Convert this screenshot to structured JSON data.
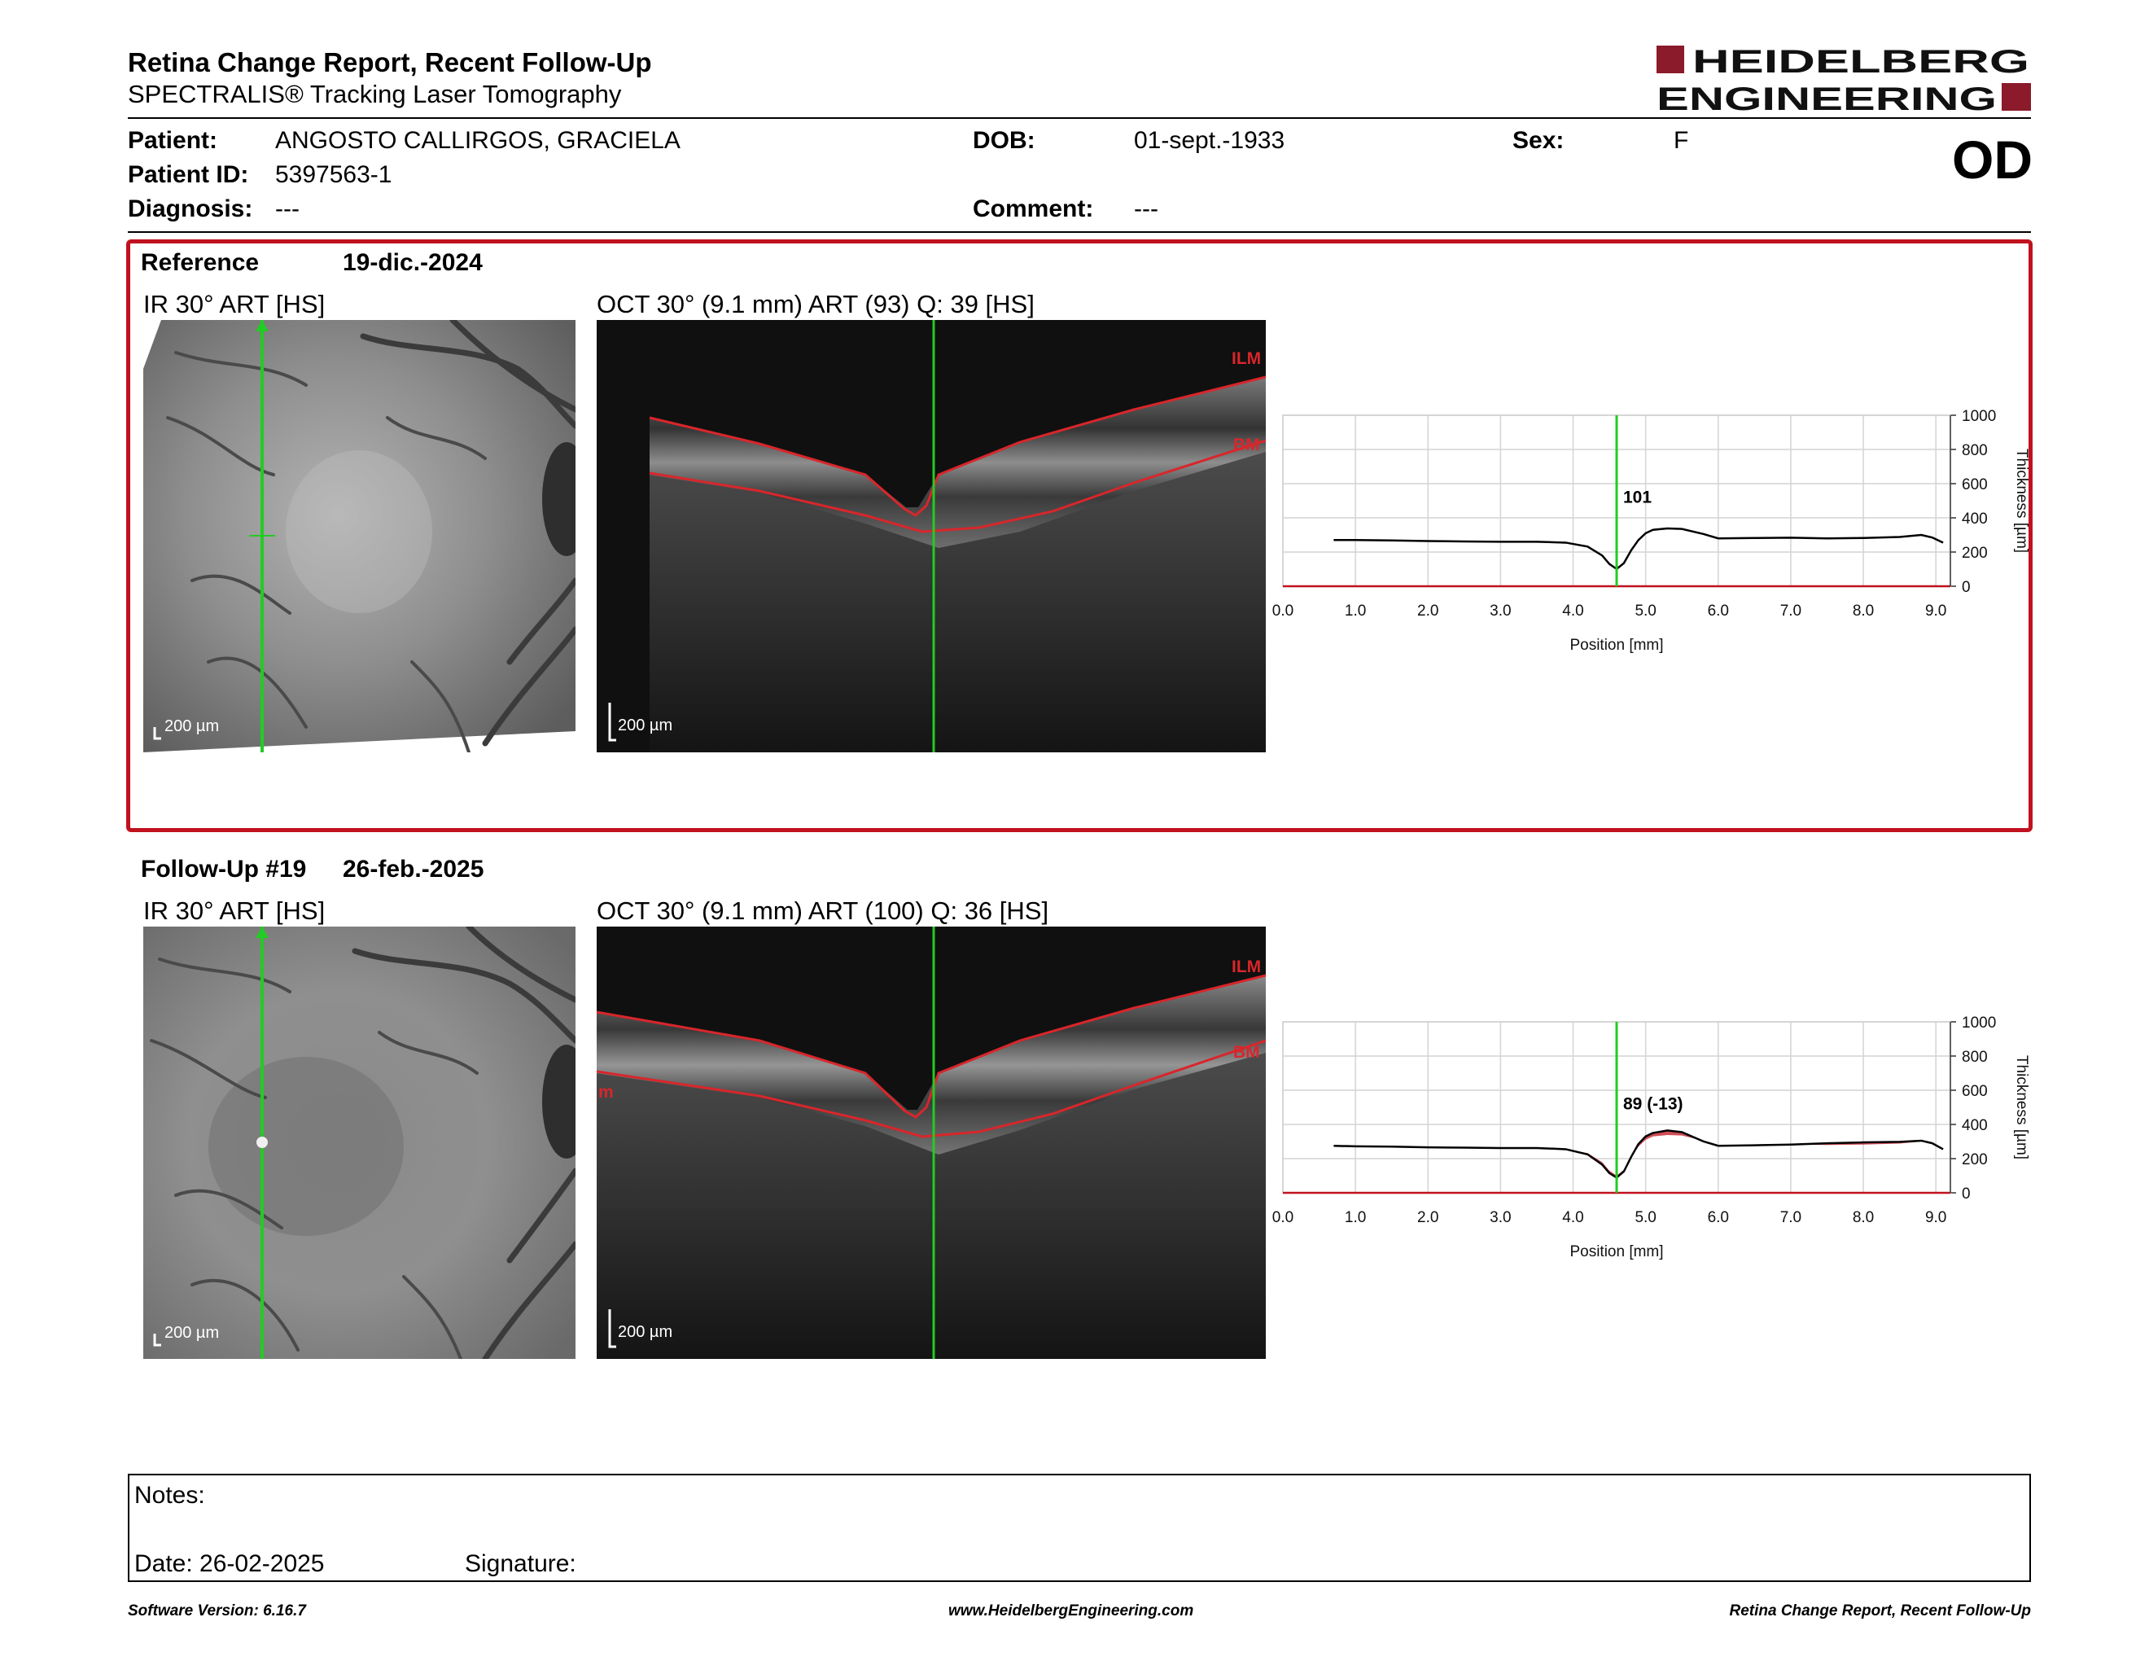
{
  "header": {
    "title": "Retina Change Report, Recent Follow-Up",
    "subtitle": "SPECTRALIS® Tracking Laser Tomography",
    "logo_line1": "HEIDELBERG",
    "logo_line2": "ENGINEERING",
    "brand_color": "#8b1a2b"
  },
  "patient": {
    "patient_label": "Patient:",
    "patient_value": "ANGOSTO CALLIRGOS, GRACIELA",
    "id_label": "Patient ID:",
    "id_value": "5397563-1",
    "diagnosis_label": "Diagnosis:",
    "diagnosis_value": "---",
    "dob_label": "DOB:",
    "dob_value": "01-sept.-1933",
    "comment_label": "Comment:",
    "comment_value": "---",
    "sex_label": "Sex:",
    "sex_value": "F",
    "eye": "OD"
  },
  "reference": {
    "label": "Reference",
    "date": "19-dic.-2024",
    "ir_title": "IR 30° ART [HS]",
    "oct_title": "OCT 30° (9.1 mm) ART (93) Q: 39 [HS]",
    "ir_scale": "200 µm",
    "oct_scale": "200 µm",
    "ilm_label": "ILM",
    "bm_label": "BM",
    "highlight_color": "#c0111f"
  },
  "followup": {
    "label": "Follow-Up #19",
    "date": "26-feb.-2025",
    "ir_title": "IR 30° ART [HS]",
    "oct_title": "OCT 30° (9.1 mm) ART (100) Q: 36 [HS]",
    "ir_scale": "200 µm",
    "oct_scale": "200 µm",
    "ilm_label": "ILM",
    "bm_label": "BM",
    "edge_label": "m"
  },
  "chart_data": [
    {
      "type": "line",
      "xlabel": "Position [mm]",
      "ylabel": "Thickness [µm]",
      "xlim": [
        0,
        9.2
      ],
      "ylim": [
        0,
        1000
      ],
      "x_ticks": [
        "0.0",
        "1.0",
        "2.0",
        "3.0",
        "4.0",
        "5.0",
        "6.0",
        "7.0",
        "8.0",
        "9.0"
      ],
      "y_ticks": [
        "0",
        "200",
        "400",
        "600",
        "800",
        "1000"
      ],
      "cursor_x": 4.6,
      "cursor_label": "101",
      "cursor_color": "#22cc22",
      "series": [
        {
          "x": [
            0.7,
            1.0,
            1.5,
            2.0,
            2.5,
            3.0,
            3.5,
            3.9,
            4.2,
            4.4,
            4.5,
            4.6,
            4.7,
            4.8,
            4.9,
            5.0,
            5.1,
            5.3,
            5.5,
            5.8,
            6.0,
            6.5,
            7.0,
            7.5,
            8.0,
            8.5,
            8.8,
            8.95,
            9.1
          ],
          "y": [
            270,
            270,
            268,
            264,
            262,
            260,
            260,
            255,
            232,
            180,
            130,
            101,
            135,
            210,
            270,
            310,
            330,
            338,
            335,
            305,
            280,
            282,
            284,
            280,
            282,
            288,
            300,
            285,
            255
          ]
        }
      ]
    },
    {
      "type": "line",
      "xlabel": "Position [mm]",
      "ylabel": "Thickness [µm]",
      "xlim": [
        0,
        9.2
      ],
      "ylim": [
        0,
        1000
      ],
      "x_ticks": [
        "0.0",
        "1.0",
        "2.0",
        "3.0",
        "4.0",
        "5.0",
        "6.0",
        "7.0",
        "8.0",
        "9.0"
      ],
      "y_ticks": [
        "0",
        "200",
        "400",
        "600",
        "800",
        "1000"
      ],
      "cursor_x": 4.6,
      "cursor_label": "89 (-13)",
      "cursor_color": "#22cc22",
      "change_color": "#c0111f",
      "series": [
        {
          "x": [
            0.7,
            1.0,
            1.5,
            2.0,
            2.5,
            3.0,
            3.5,
            3.9,
            4.2,
            4.4,
            4.5,
            4.6,
            4.7,
            4.8,
            4.9,
            5.0,
            5.1,
            5.3,
            5.5,
            5.8,
            6.0,
            6.5,
            7.0,
            7.5,
            8.0,
            8.5,
            8.8,
            8.95,
            9.1
          ],
          "y": [
            275,
            272,
            270,
            266,
            264,
            262,
            262,
            255,
            225,
            165,
            115,
            89,
            125,
            210,
            285,
            330,
            350,
            365,
            355,
            300,
            275,
            278,
            282,
            290,
            295,
            298,
            305,
            290,
            255
          ]
        },
        {
          "x": [
            0.7,
            1.0,
            1.5,
            2.0,
            2.5,
            3.0,
            3.5,
            3.9,
            4.2,
            4.4,
            4.5,
            4.6,
            4.7,
            4.8,
            4.9,
            5.0,
            5.1,
            5.3,
            5.5,
            5.8,
            6.0,
            6.5,
            7.0,
            7.5,
            8.0,
            8.5,
            8.8,
            8.95,
            9.1
          ],
          "y": [
            270,
            270,
            268,
            264,
            262,
            260,
            260,
            255,
            232,
            180,
            130,
            101,
            135,
            210,
            270,
            310,
            330,
            338,
            335,
            305,
            280,
            282,
            284,
            280,
            282,
            288,
            300,
            285,
            255
          ]
        }
      ]
    }
  ],
  "notes": {
    "notes_label": "Notes:",
    "date_label": "Date: 26-02-2025",
    "signature_label": "Signature:"
  },
  "footer": {
    "software": "Software Version: 6.16.7",
    "website": "www.HeidelbergEngineering.com",
    "report_name": "Retina Change Report, Recent Follow-Up"
  }
}
